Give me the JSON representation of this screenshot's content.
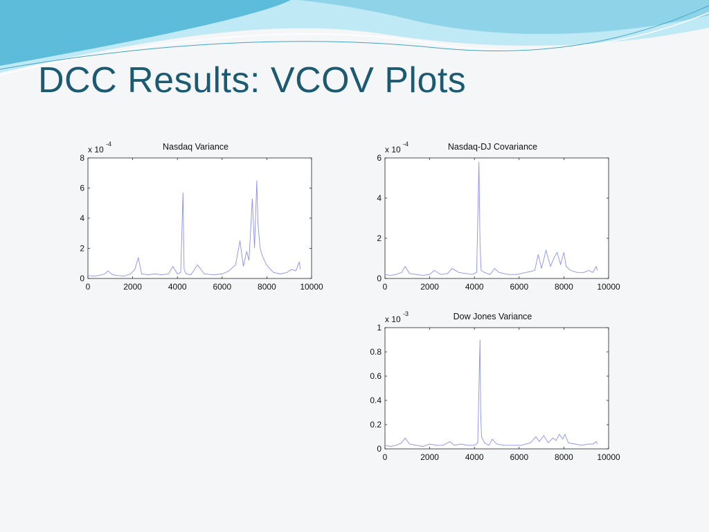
{
  "slide": {
    "title": "DCC Results: VCOV Plots",
    "colors": {
      "title": "#1b5a70",
      "wave_dark": "#4fb6d4",
      "wave_light": "#a8dff0",
      "series": "#8a8ff0"
    }
  },
  "chart_data": [
    {
      "type": "line",
      "title": "Nasdaq Variance",
      "xlabel": "",
      "ylabel": "",
      "xlim": [
        0,
        10000
      ],
      "ylim": [
        0,
        8
      ],
      "xticks": [
        "0",
        "2000",
        "4000",
        "6000",
        "8000",
        "10000"
      ],
      "yticks": [
        "0",
        "2",
        "4",
        "6",
        "8"
      ],
      "exponent_label": "x 10",
      "exponent": "-4",
      "grid": false,
      "series": [
        {
          "x": [
            0,
            250,
            500,
            750,
            900,
            1100,
            1300,
            1600,
            1900,
            2100,
            2250,
            2400,
            2700,
            3000,
            3300,
            3600,
            3800,
            4000,
            4150,
            4250,
            4300,
            4400,
            4600,
            4900,
            5200,
            5600,
            6000,
            6300,
            6600,
            6800,
            6950,
            7100,
            7200,
            7350,
            7450,
            7550,
            7600,
            7700,
            7800,
            7950,
            8100,
            8300,
            8600,
            8900,
            9100,
            9300,
            9450,
            9500
          ],
          "y": [
            0.2,
            0.15,
            0.2,
            0.3,
            0.5,
            0.25,
            0.2,
            0.15,
            0.3,
            0.6,
            1.4,
            0.3,
            0.25,
            0.3,
            0.25,
            0.3,
            0.8,
            0.3,
            0.4,
            5.7,
            0.6,
            0.3,
            0.25,
            0.9,
            0.3,
            0.25,
            0.3,
            0.5,
            0.9,
            2.5,
            0.8,
            1.8,
            1.2,
            5.3,
            2.0,
            6.5,
            3.7,
            2.0,
            1.5,
            1.0,
            0.7,
            0.4,
            0.3,
            0.4,
            0.6,
            0.5,
            1.1,
            0.6
          ]
        }
      ]
    },
    {
      "type": "line",
      "title": "Nasdaq-DJ Covariance",
      "xlabel": "",
      "ylabel": "",
      "xlim": [
        0,
        10000
      ],
      "ylim": [
        0,
        6
      ],
      "xticks": [
        "0",
        "2000",
        "4000",
        "6000",
        "8000",
        "10000"
      ],
      "yticks": [
        "0",
        "2",
        "4",
        "6"
      ],
      "exponent_label": "x 10",
      "exponent": "-4",
      "grid": false,
      "series": [
        {
          "x": [
            0,
            250,
            500,
            750,
            900,
            1100,
            1400,
            1700,
            2000,
            2200,
            2500,
            2800,
            3000,
            3300,
            3600,
            3900,
            4100,
            4200,
            4250,
            4300,
            4450,
            4700,
            4900,
            5100,
            5500,
            5900,
            6300,
            6700,
            6850,
            7000,
            7200,
            7400,
            7550,
            7700,
            7850,
            8000,
            8100,
            8300,
            8600,
            8900,
            9100,
            9300,
            9450,
            9500
          ],
          "y": [
            0.2,
            0.15,
            0.2,
            0.3,
            0.6,
            0.25,
            0.2,
            0.15,
            0.2,
            0.4,
            0.2,
            0.25,
            0.5,
            0.3,
            0.25,
            0.2,
            0.3,
            5.8,
            1.7,
            0.4,
            0.3,
            0.2,
            0.5,
            0.3,
            0.2,
            0.2,
            0.3,
            0.4,
            1.2,
            0.5,
            1.4,
            0.6,
            1.0,
            1.3,
            0.7,
            1.3,
            0.6,
            0.4,
            0.3,
            0.3,
            0.4,
            0.3,
            0.6,
            0.4
          ]
        }
      ]
    },
    {
      "type": "line",
      "title": "Dow Jones Variance",
      "xlabel": "",
      "ylabel": "",
      "xlim": [
        0,
        10000
      ],
      "ylim": [
        0,
        1
      ],
      "xticks": [
        "0",
        "2000",
        "4000",
        "6000",
        "8000",
        "10000"
      ],
      "yticks": [
        "0",
        "0.2",
        "0.4",
        "0.6",
        "0.8",
        "1"
      ],
      "exponent_label": "x 10",
      "exponent": "-3",
      "grid": false,
      "series": [
        {
          "x": [
            0,
            250,
            500,
            750,
            900,
            1100,
            1400,
            1700,
            2000,
            2300,
            2600,
            2900,
            3100,
            3400,
            3700,
            4000,
            4150,
            4250,
            4280,
            4320,
            4450,
            4650,
            4800,
            5000,
            5300,
            5700,
            6100,
            6500,
            6750,
            6900,
            7100,
            7300,
            7500,
            7650,
            7800,
            7950,
            8050,
            8200,
            8500,
            8800,
            9100,
            9300,
            9450,
            9500
          ],
          "y": [
            0.03,
            0.02,
            0.03,
            0.05,
            0.09,
            0.04,
            0.03,
            0.02,
            0.04,
            0.03,
            0.03,
            0.06,
            0.03,
            0.04,
            0.03,
            0.03,
            0.05,
            0.9,
            0.3,
            0.1,
            0.05,
            0.03,
            0.08,
            0.04,
            0.03,
            0.03,
            0.03,
            0.05,
            0.1,
            0.06,
            0.11,
            0.05,
            0.09,
            0.07,
            0.12,
            0.08,
            0.12,
            0.05,
            0.04,
            0.03,
            0.04,
            0.04,
            0.06,
            0.04
          ]
        }
      ]
    }
  ]
}
